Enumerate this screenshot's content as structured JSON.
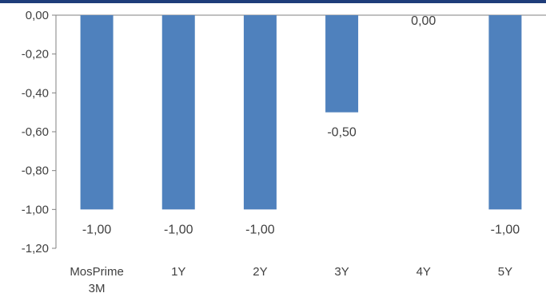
{
  "colors": {
    "bar": "#4f81bd",
    "top_rule": "#1f3d7a",
    "axis": "#808080",
    "text": "#404040"
  },
  "chart_data": {
    "type": "bar",
    "categories": [
      [
        "MosPrime",
        "3M"
      ],
      [
        "1Y"
      ],
      [
        "2Y"
      ],
      [
        "3Y"
      ],
      [
        "4Y"
      ],
      [
        "5Y"
      ]
    ],
    "values": [
      -1.0,
      -1.0,
      -1.0,
      -0.5,
      0.0,
      -1.0
    ],
    "data_labels": [
      "-1,00",
      "-1,00",
      "-1,00",
      "-0,50",
      "0,00",
      "-1,00"
    ],
    "yticks": [
      0,
      -0.2,
      -0.4,
      -0.6,
      -0.8,
      -1.0,
      -1.2
    ],
    "ytick_labels": [
      "0,00",
      "-0,20",
      "-0,40",
      "-0,60",
      "-0,80",
      "-1,00",
      "-1,20"
    ],
    "ylim": [
      -1.2,
      0
    ],
    "grid": false,
    "legend": "none"
  }
}
